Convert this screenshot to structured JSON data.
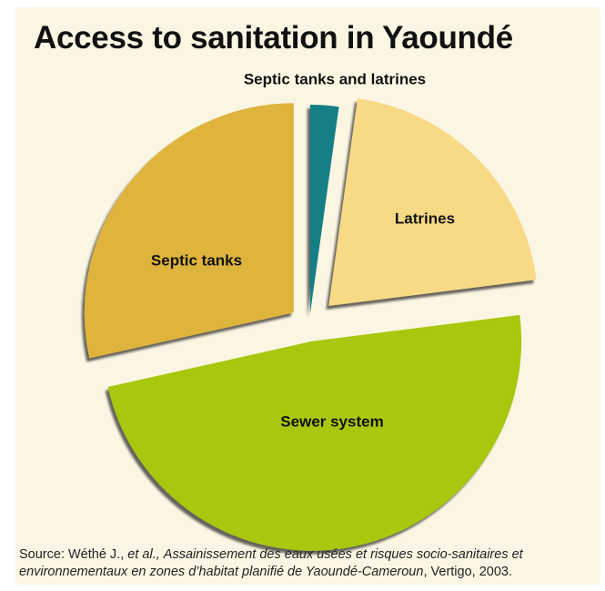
{
  "chart_data": {
    "type": "pie",
    "title": "Access to sanitation in Yaoundé",
    "slices": [
      {
        "label": "Septic tanks and latrines",
        "value": 2.2,
        "color": "#127f86"
      },
      {
        "label": "Latrines",
        "value": 20.8,
        "color": "#f8d985"
      },
      {
        "label": "Sewer system",
        "value": 48.5,
        "color": "#a8c70a"
      },
      {
        "label": "Septic tanks",
        "value": 28.5,
        "color": "#deb43e"
      }
    ]
  },
  "source": {
    "prefix": "Source: Wéthé J., ",
    "etal": "et al.,",
    "space": " ",
    "work": "Assainissement des eaux usées et risques socio-sanitaires et environnementaux en zones d’habitat planifié de Yaoundé-Cameroun",
    "suffix": ", Vertigo, 2003."
  }
}
